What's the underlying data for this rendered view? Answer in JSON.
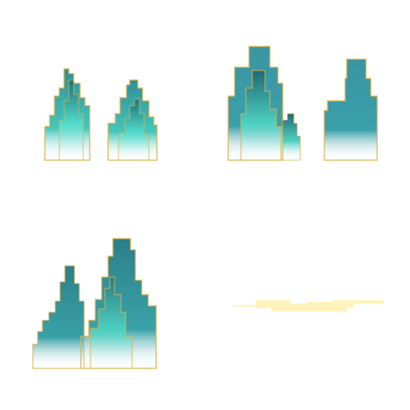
{
  "canvas": {
    "background": "#ffffff"
  },
  "palette": {
    "outline_gold": "#d9b24a",
    "teal_dark": "#256f7c",
    "teal_mid": "#3a95a2",
    "teal_light": "#4fd2c2",
    "mist": "#ffffff",
    "cloud_cream": "#fff2b8"
  },
  "sprites": [
    {
      "name": "twin-peaks-mountain",
      "kind": "mountain-pair"
    },
    {
      "name": "tall-cliff-mountain",
      "kind": "mountain-cliff"
    },
    {
      "name": "ridge-mountain",
      "kind": "mountain-ridge"
    },
    {
      "name": "cloud-streak",
      "kind": "cloud"
    }
  ]
}
